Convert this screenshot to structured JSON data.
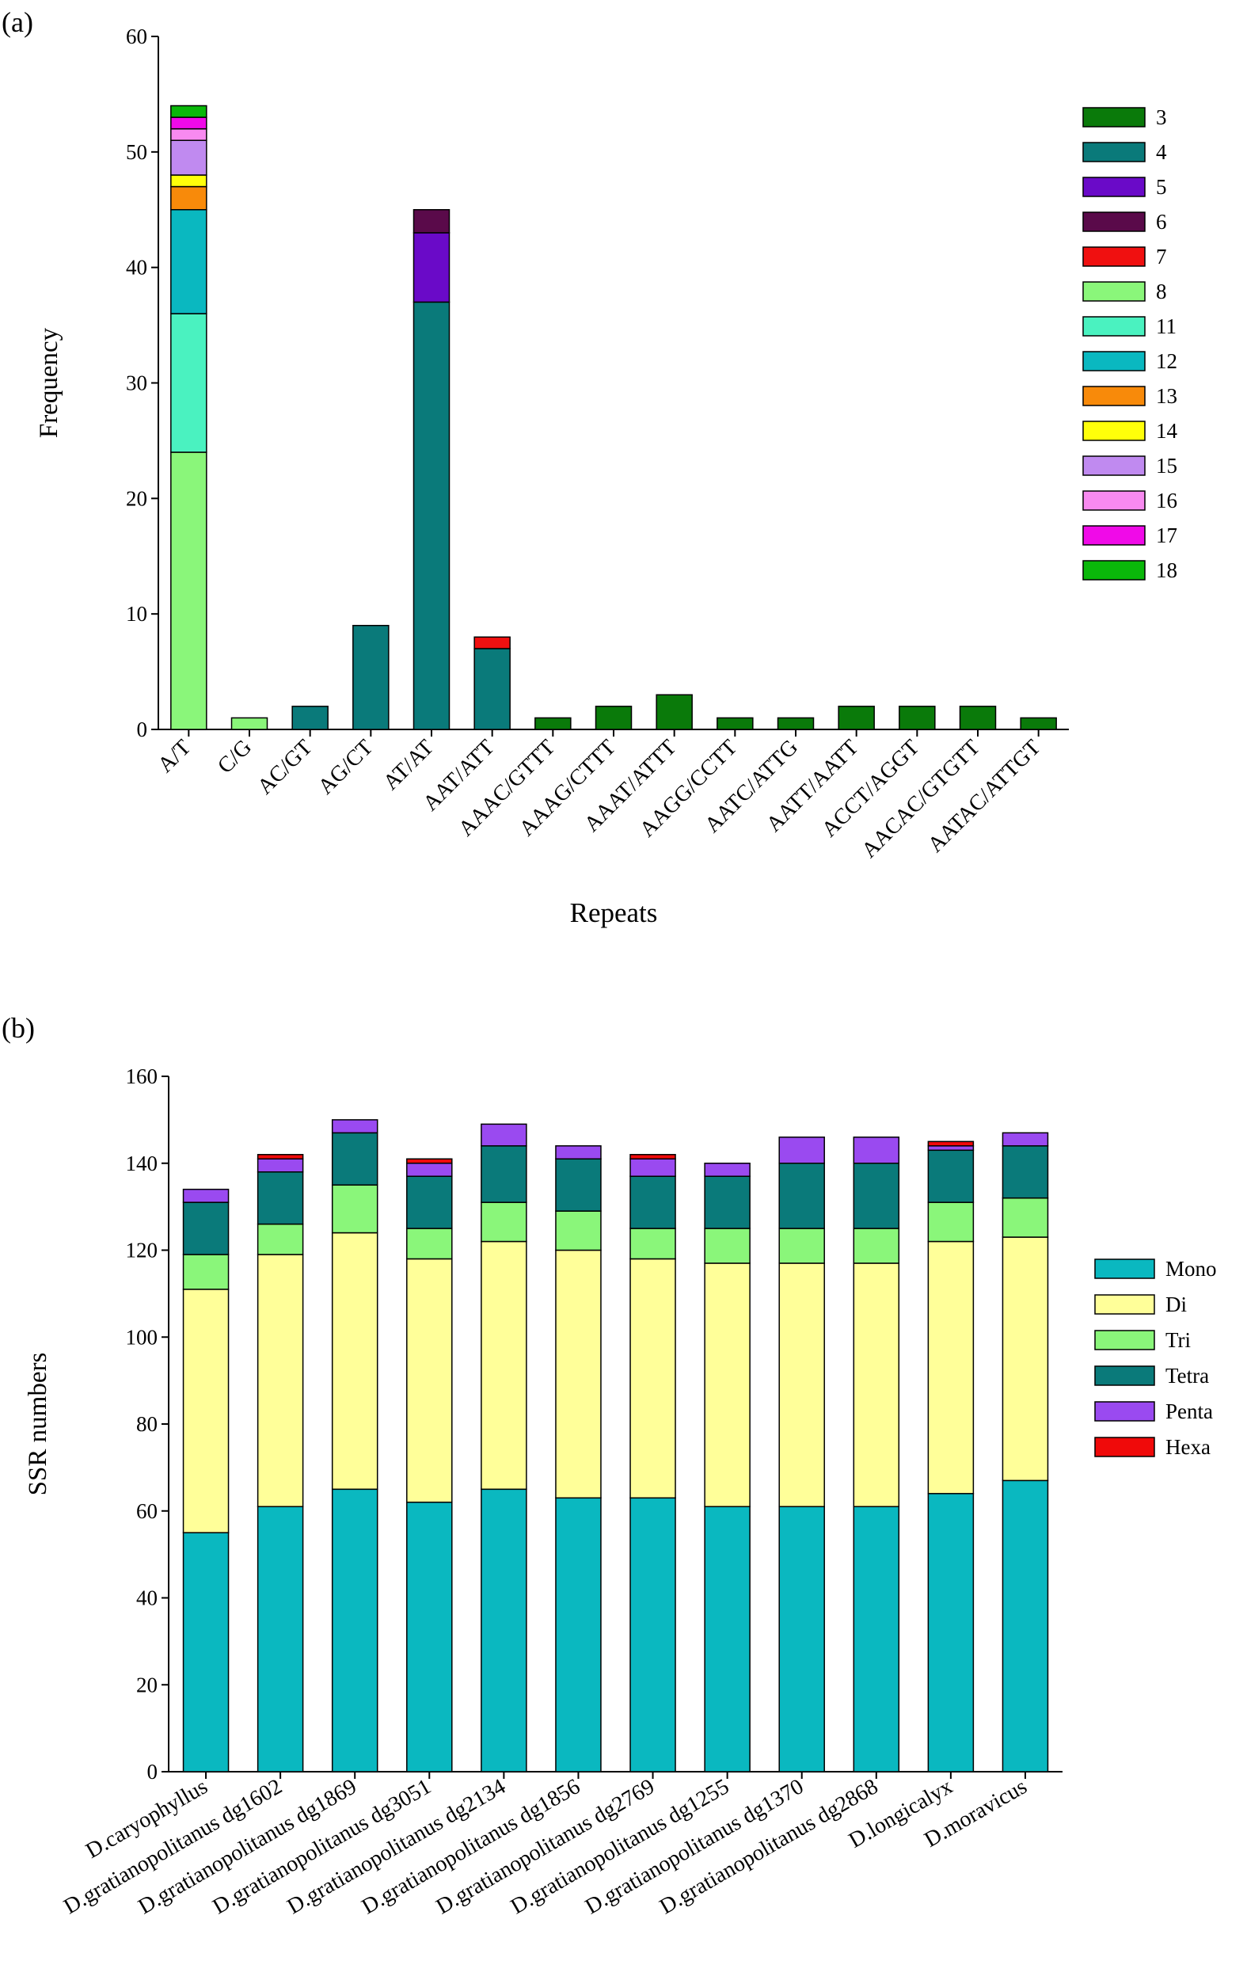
{
  "figure": {
    "panel_a_label": "(a)",
    "panel_b_label": "(b)"
  },
  "chart_data": [
    {
      "type": "bar",
      "stacked": true,
      "panel": "(a)",
      "title": "",
      "xlabel": "Repeats",
      "ylabel": "Frequency",
      "ylim": [
        0,
        60
      ],
      "yticks": [
        0,
        10,
        20,
        30,
        40,
        50,
        60
      ],
      "legend_position": "right",
      "categories": [
        "A/T",
        "C/G",
        "AC/GT",
        "AG/CT",
        "AT/AT",
        "AAT/ATT",
        "AAAC/GTTT",
        "AAAG/CTTT",
        "AAAT/ATTT",
        "AAGG/CCTT",
        "AATC/ATTG",
        "AATT/AATT",
        "ACCT/AGGT",
        "AACAC/GTGTT",
        "AATAC/ATTGT"
      ],
      "series": [
        {
          "name": "3",
          "color": "#0a7a0a",
          "values": [
            0,
            0,
            0,
            0,
            0,
            0,
            1,
            2,
            3,
            1,
            1,
            2,
            2,
            2,
            1
          ]
        },
        {
          "name": "4",
          "color": "#0a7a7a",
          "values": [
            0,
            0,
            2,
            9,
            37,
            7,
            0,
            0,
            0,
            0,
            0,
            0,
            0,
            0,
            0
          ]
        },
        {
          "name": "5",
          "color": "#6a0ac8",
          "values": [
            0,
            0,
            0,
            0,
            6,
            0,
            0,
            0,
            0,
            0,
            0,
            0,
            0,
            0,
            0
          ]
        },
        {
          "name": "6",
          "color": "#5a0a4a",
          "values": [
            0,
            0,
            0,
            0,
            2,
            0,
            0,
            0,
            0,
            0,
            0,
            0,
            0,
            0,
            0
          ]
        },
        {
          "name": "7",
          "color": "#f01010",
          "values": [
            0,
            0,
            0,
            0,
            0,
            1,
            0,
            0,
            0,
            0,
            0,
            0,
            0,
            0,
            0
          ]
        },
        {
          "name": "8",
          "color": "#8af67a",
          "values": [
            24,
            1,
            0,
            0,
            0,
            0,
            0,
            0,
            0,
            0,
            0,
            0,
            0,
            0,
            0
          ]
        },
        {
          "name": "11",
          "color": "#4af2c0",
          "values": [
            12,
            0,
            0,
            0,
            0,
            0,
            0,
            0,
            0,
            0,
            0,
            0,
            0,
            0,
            0
          ]
        },
        {
          "name": "12",
          "color": "#0ab8c0",
          "values": [
            9,
            0,
            0,
            0,
            0,
            0,
            0,
            0,
            0,
            0,
            0,
            0,
            0,
            0,
            0
          ]
        },
        {
          "name": "13",
          "color": "#f88a0a",
          "values": [
            2,
            0,
            0,
            0,
            0,
            0,
            0,
            0,
            0,
            0,
            0,
            0,
            0,
            0,
            0
          ]
        },
        {
          "name": "14",
          "color": "#ffff0a",
          "values": [
            1,
            0,
            0,
            0,
            0,
            0,
            0,
            0,
            0,
            0,
            0,
            0,
            0,
            0,
            0
          ]
        },
        {
          "name": "15",
          "color": "#c08af0",
          "values": [
            3,
            0,
            0,
            0,
            0,
            0,
            0,
            0,
            0,
            0,
            0,
            0,
            0,
            0,
            0
          ]
        },
        {
          "name": "16",
          "color": "#f88af0",
          "values": [
            1,
            0,
            0,
            0,
            0,
            0,
            0,
            0,
            0,
            0,
            0,
            0,
            0,
            0,
            0
          ]
        },
        {
          "name": "17",
          "color": "#f00ae8",
          "values": [
            1,
            0,
            0,
            0,
            0,
            0,
            0,
            0,
            0,
            0,
            0,
            0,
            0,
            0,
            0
          ]
        },
        {
          "name": "18",
          "color": "#0ab80a",
          "values": [
            1,
            0,
            0,
            0,
            0,
            0,
            0,
            0,
            0,
            0,
            0,
            0,
            0,
            0,
            0
          ]
        }
      ]
    },
    {
      "type": "bar",
      "stacked": true,
      "panel": "(b)",
      "title": "",
      "xlabel": "",
      "ylabel": "SSR numbers",
      "ylim": [
        0,
        160
      ],
      "yticks": [
        0,
        20,
        40,
        60,
        80,
        100,
        120,
        140,
        160
      ],
      "legend_position": "right",
      "categories": [
        "D.caryophyllus",
        "D.gratianopolitanus dg1602",
        "D.gratianopolitanus dg1869",
        "D.gratianopolitanus dg3051",
        "D.gratianopolitanus dg2134",
        "D.gratianopolitanus dg1856",
        "D.gratianopolitanus dg2769",
        "D.gratianopolitanus dg1255",
        "D.gratianopolitanus dg1370",
        "D.gratianopolitanus dg2868",
        "D.longicalyx",
        "D.moravicus"
      ],
      "series": [
        {
          "name": "Mono",
          "color": "#0ab8c0",
          "values": [
            55,
            61,
            65,
            62,
            65,
            63,
            63,
            61,
            61,
            61,
            64,
            67
          ]
        },
        {
          "name": "Di",
          "color": "#ffff99",
          "values": [
            56,
            58,
            59,
            56,
            57,
            57,
            55,
            56,
            56,
            56,
            58,
            56
          ]
        },
        {
          "name": "Tri",
          "color": "#8af67a",
          "values": [
            8,
            7,
            11,
            7,
            9,
            9,
            7,
            8,
            8,
            8,
            9,
            9
          ]
        },
        {
          "name": "Tetra",
          "color": "#0a7a7a",
          "values": [
            12,
            12,
            12,
            12,
            13,
            12,
            12,
            12,
            15,
            15,
            12,
            12
          ]
        },
        {
          "name": "Penta",
          "color": "#9a4af0",
          "values": [
            3,
            3,
            3,
            3,
            5,
            3,
            4,
            3,
            6,
            6,
            1,
            3
          ]
        },
        {
          "name": "Hexa",
          "color": "#f00a0a",
          "values": [
            0,
            1,
            0,
            1,
            0,
            0,
            1,
            0,
            0,
            0,
            1,
            0
          ]
        }
      ]
    }
  ]
}
